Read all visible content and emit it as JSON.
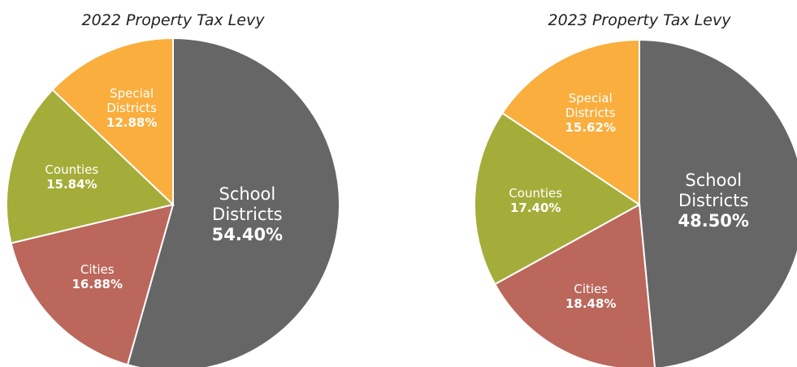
{
  "chart_data": [
    {
      "type": "pie",
      "title": "2022 Property Tax Levy",
      "categories": [
        "School Districts",
        "Cities",
        "Counties",
        "Special Districts"
      ],
      "values": [
        54.4,
        16.88,
        15.84,
        12.88
      ],
      "value_labels": [
        "54.40%",
        "16.88%",
        "15.84%",
        "12.88%"
      ],
      "colors": [
        "#656665",
        "#bb675c",
        "#a5ad3a",
        "#f9ae3e"
      ]
    },
    {
      "type": "pie",
      "title": "2023 Property Tax Levy",
      "categories": [
        "School Districts",
        "Cities",
        "Counties",
        "Special Districts"
      ],
      "values": [
        48.5,
        18.48,
        17.4,
        15.62
      ],
      "value_labels": [
        "48.50%",
        "18.48%",
        "17.40%",
        "15.62%"
      ],
      "colors": [
        "#656665",
        "#bb675c",
        "#a5ad3a",
        "#f9ae3e"
      ]
    }
  ]
}
